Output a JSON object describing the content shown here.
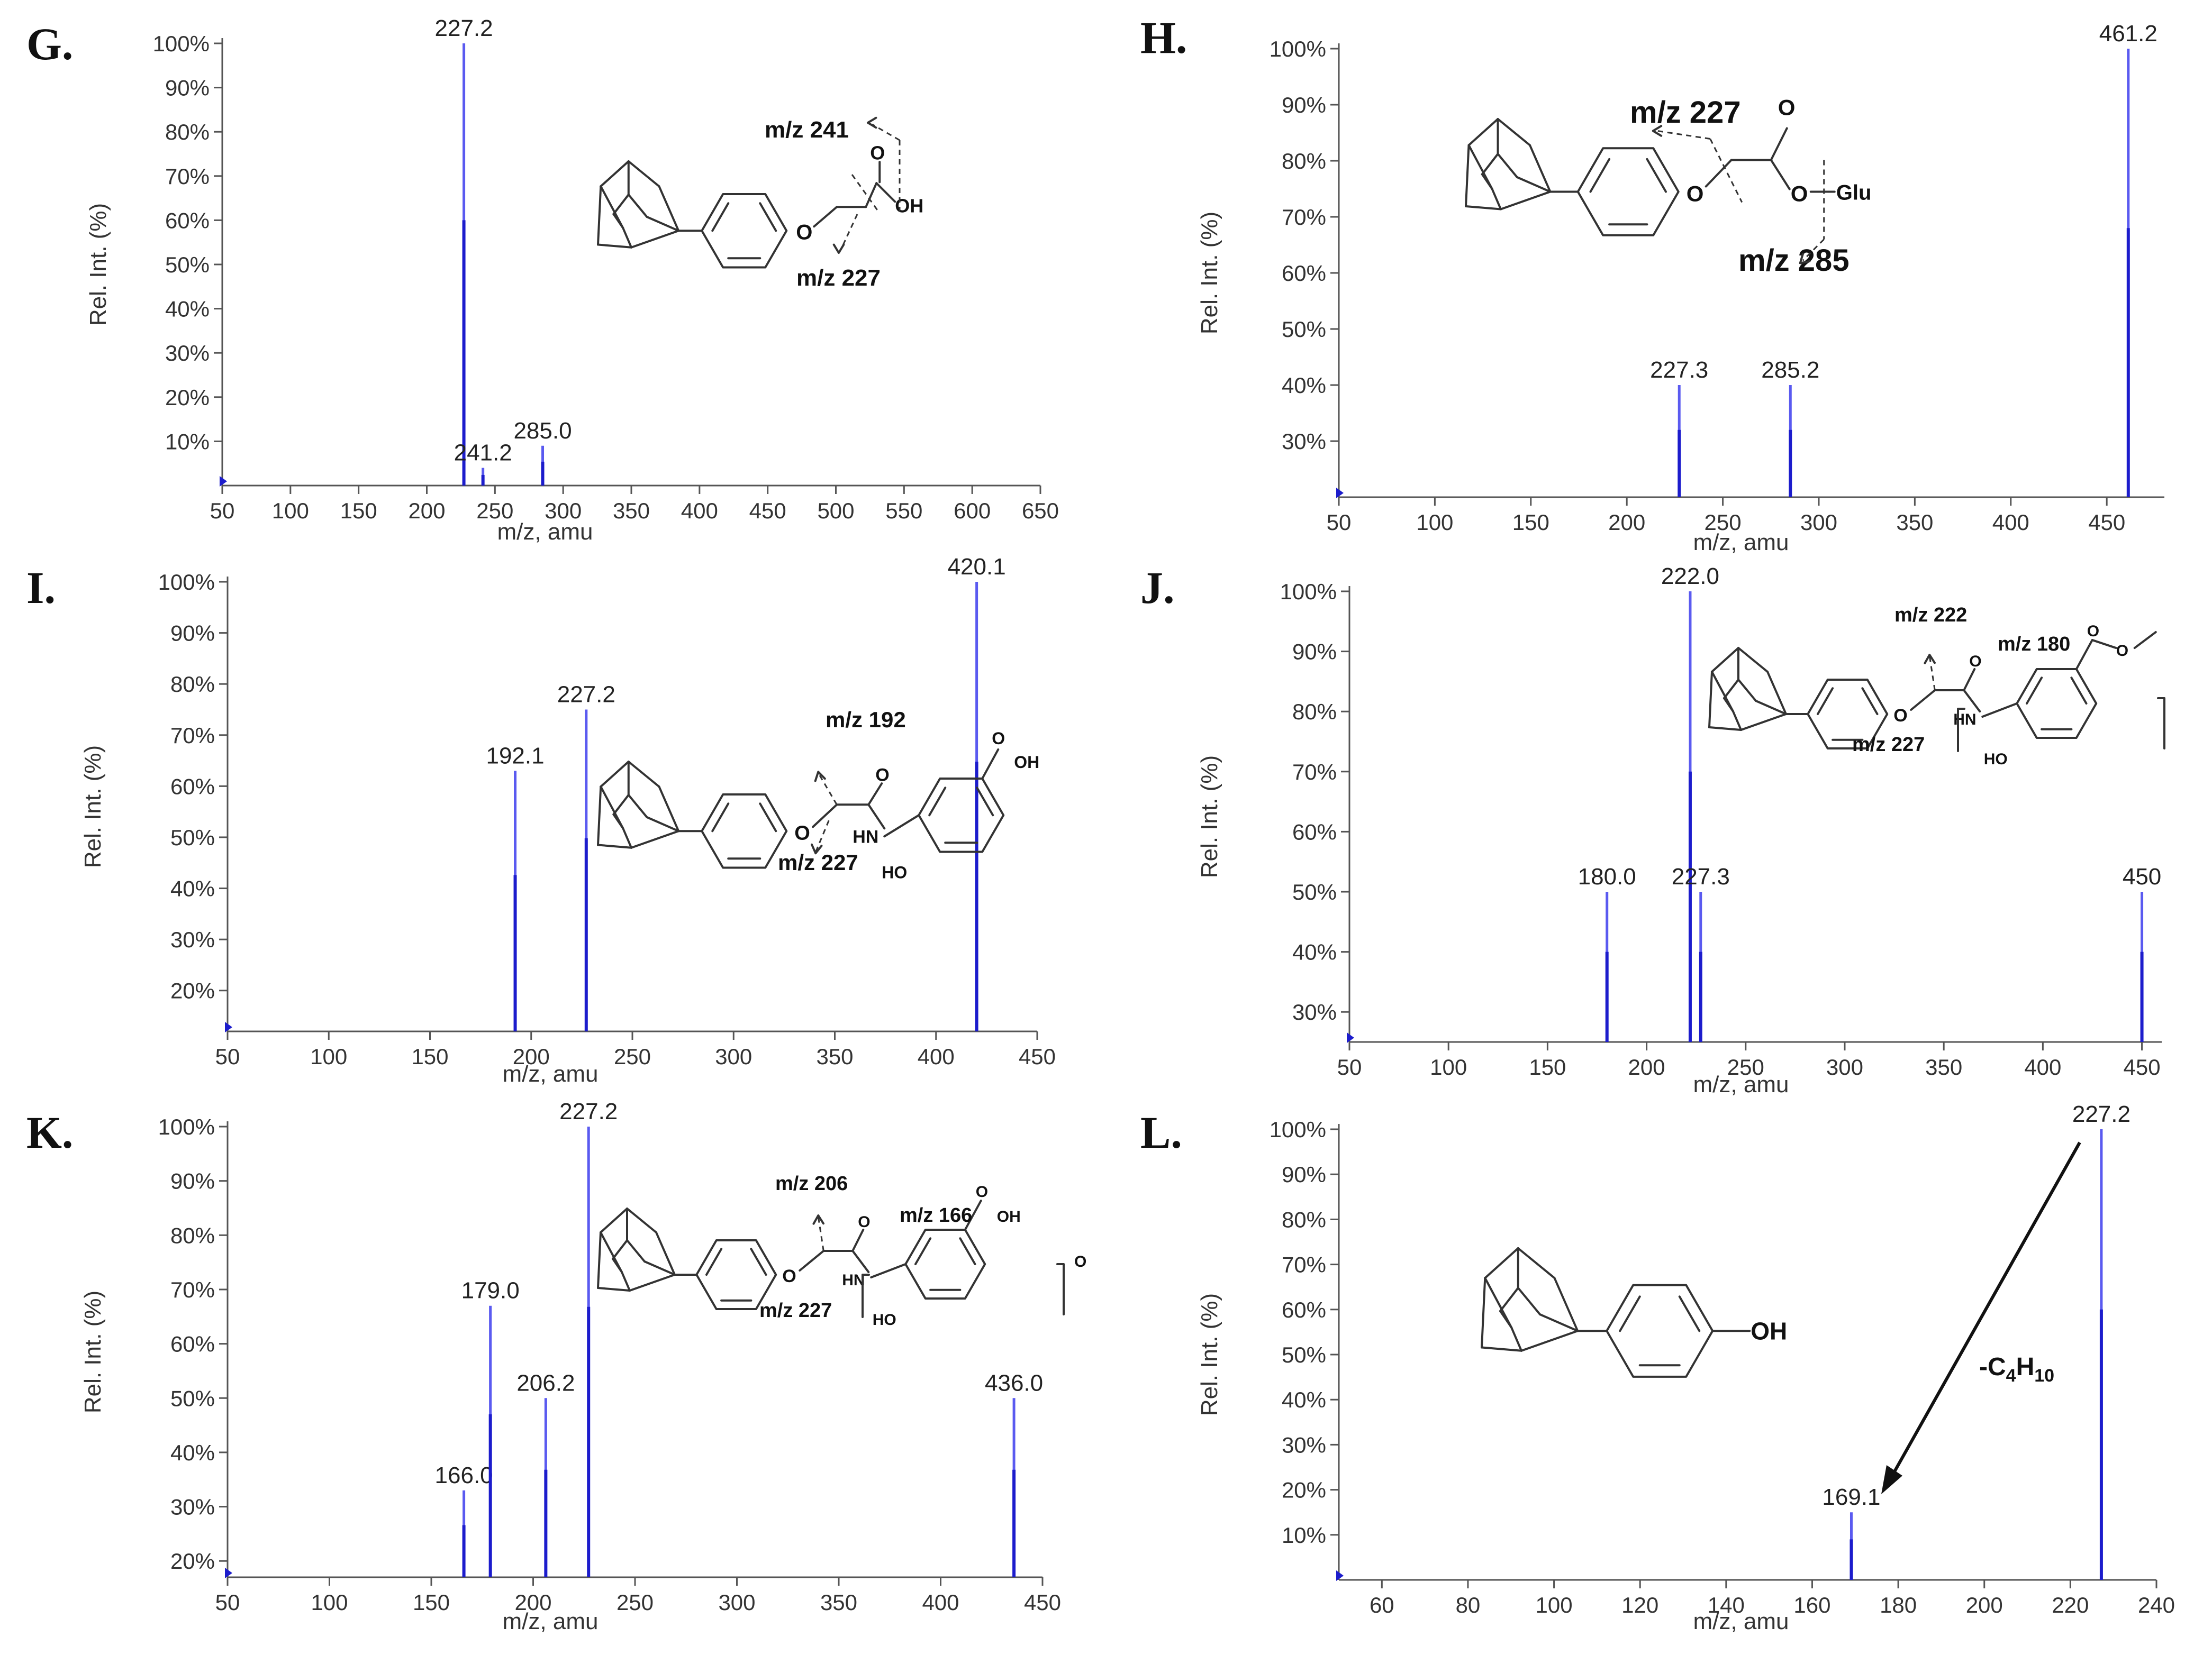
{
  "chart_data": [
    {
      "panel": "G.",
      "type": "bar",
      "xlabel": "m/z, amu",
      "ylabel": "Rel. Int. (%)",
      "xlim": [
        50,
        650
      ],
      "ylim": [
        0,
        100
      ],
      "x_ticks": [
        "50",
        "100",
        "150",
        "200",
        "250",
        "300",
        "350",
        "400",
        "450",
        "500",
        "550",
        "600",
        "650"
      ],
      "y_ticks": [
        "10%",
        "20%",
        "30%",
        "40%",
        "50%",
        "60%",
        "70%",
        "80%",
        "90%",
        "100%"
      ],
      "peaks": [
        {
          "x": 227.2,
          "y": 100,
          "label": "227.2"
        },
        {
          "x": 241.2,
          "y": 4,
          "label": "241.2"
        },
        {
          "x": 285.0,
          "y": 9,
          "label": "285.0"
        }
      ],
      "annotations": [
        "m/z 241",
        "m/z 227",
        "OH",
        "O",
        "O"
      ]
    },
    {
      "panel": "H.",
      "type": "bar",
      "xlabel": "m/z, amu",
      "ylabel": "Rel. Int. (%)",
      "xlim": [
        50,
        480
      ],
      "ylim": [
        20,
        100
      ],
      "x_ticks": [
        "50",
        "100",
        "150",
        "200",
        "250",
        "300",
        "350",
        "400",
        "450"
      ],
      "y_ticks": [
        "30%",
        "40%",
        "50%",
        "60%",
        "70%",
        "80%",
        "90%",
        "100%"
      ],
      "peaks": [
        {
          "x": 227.3,
          "y": 40,
          "label": "227.3"
        },
        {
          "x": 285.2,
          "y": 40,
          "label": "285.2"
        },
        {
          "x": 461.2,
          "y": 100,
          "label": "461.2"
        }
      ],
      "annotations": [
        "m/z 227",
        "m/z 285",
        "O",
        "O",
        "O",
        "Glu"
      ]
    },
    {
      "panel": "I.",
      "type": "bar",
      "xlabel": "m/z, amu",
      "ylabel": "Rel. Int. (%)",
      "xlim": [
        50,
        450
      ],
      "ylim": [
        12,
        100
      ],
      "x_ticks": [
        "50",
        "100",
        "150",
        "200",
        "250",
        "300",
        "350",
        "400",
        "450"
      ],
      "y_ticks": [
        "20%",
        "30%",
        "40%",
        "50%",
        "60%",
        "70%",
        "80%",
        "90%",
        "100%"
      ],
      "peaks": [
        {
          "x": 192.1,
          "y": 63,
          "label": "192.1"
        },
        {
          "x": 227.2,
          "y": 75,
          "label": "227.2"
        },
        {
          "x": 420.1,
          "y": 100,
          "label": "420.1"
        }
      ],
      "annotations": [
        "m/z 192",
        "m/z 227",
        "OH",
        "HO",
        "HN",
        "O",
        "O"
      ]
    },
    {
      "panel": "J.",
      "type": "bar",
      "xlabel": "m/z, amu",
      "ylabel": "Rel. Int. (%)",
      "xlim": [
        50,
        460
      ],
      "ylim": [
        25,
        100
      ],
      "x_ticks": [
        "50",
        "100",
        "150",
        "200",
        "250",
        "300",
        "350",
        "400",
        "450"
      ],
      "y_ticks": [
        "30%",
        "40%",
        "50%",
        "60%",
        "70%",
        "80%",
        "90%",
        "100%"
      ],
      "peaks": [
        {
          "x": 180.0,
          "y": 50,
          "label": "180.0"
        },
        {
          "x": 222.0,
          "y": 100,
          "label": "222.0"
        },
        {
          "x": 227.3,
          "y": 50,
          "label": "227.3"
        },
        {
          "x": 450,
          "y": 50,
          "label": "450"
        }
      ],
      "annotations": [
        "m/z 222",
        "m/z 180",
        "m/z 227",
        "HN",
        "HO",
        "O",
        "O",
        "O",
        "O"
      ]
    },
    {
      "panel": "K.",
      "type": "bar",
      "xlabel": "m/z, amu",
      "ylabel": "Rel. Int. (%)",
      "xlim": [
        50,
        450
      ],
      "ylim": [
        17,
        100
      ],
      "x_ticks": [
        "50",
        "100",
        "150",
        "200",
        "250",
        "300",
        "350",
        "400",
        "450"
      ],
      "y_ticks": [
        "20%",
        "30%",
        "40%",
        "50%",
        "60%",
        "70%",
        "80%",
        "90%",
        "100%"
      ],
      "peaks": [
        {
          "x": 166.0,
          "y": 33,
          "label": "166.0"
        },
        {
          "x": 179.0,
          "y": 67,
          "label": "179.0"
        },
        {
          "x": 206.2,
          "y": 50,
          "label": "206.2"
        },
        {
          "x": 227.2,
          "y": 100,
          "label": "227.2"
        },
        {
          "x": 436.0,
          "y": 50,
          "label": "436.0"
        }
      ],
      "annotations": [
        "m/z 206",
        "m/z 166",
        "m/z 227",
        "OH",
        "HN",
        "HO",
        "O",
        "O",
        "O"
      ]
    },
    {
      "panel": "L.",
      "type": "bar",
      "xlabel": "m/z, amu",
      "ylabel": "Rel. Int. (%)",
      "xlim": [
        50,
        240
      ],
      "ylim": [
        0,
        100
      ],
      "x_ticks": [
        "60",
        "80",
        "100",
        "120",
        "140",
        "160",
        "180",
        "200",
        "220",
        "240"
      ],
      "y_ticks": [
        "10%",
        "20%",
        "30%",
        "40%",
        "50%",
        "60%",
        "70%",
        "80%",
        "90%",
        "100%"
      ],
      "peaks": [
        {
          "x": 169.1,
          "y": 15,
          "label": "169.1"
        },
        {
          "x": 227.2,
          "y": 100,
          "label": "227.2"
        }
      ],
      "annotations": [
        "OH",
        "-C4H10"
      ]
    }
  ],
  "colors": {
    "peak": "#5a5af0",
    "peak_dark": "#1c1ccc",
    "axis": "#555555",
    "text": "#222222"
  }
}
